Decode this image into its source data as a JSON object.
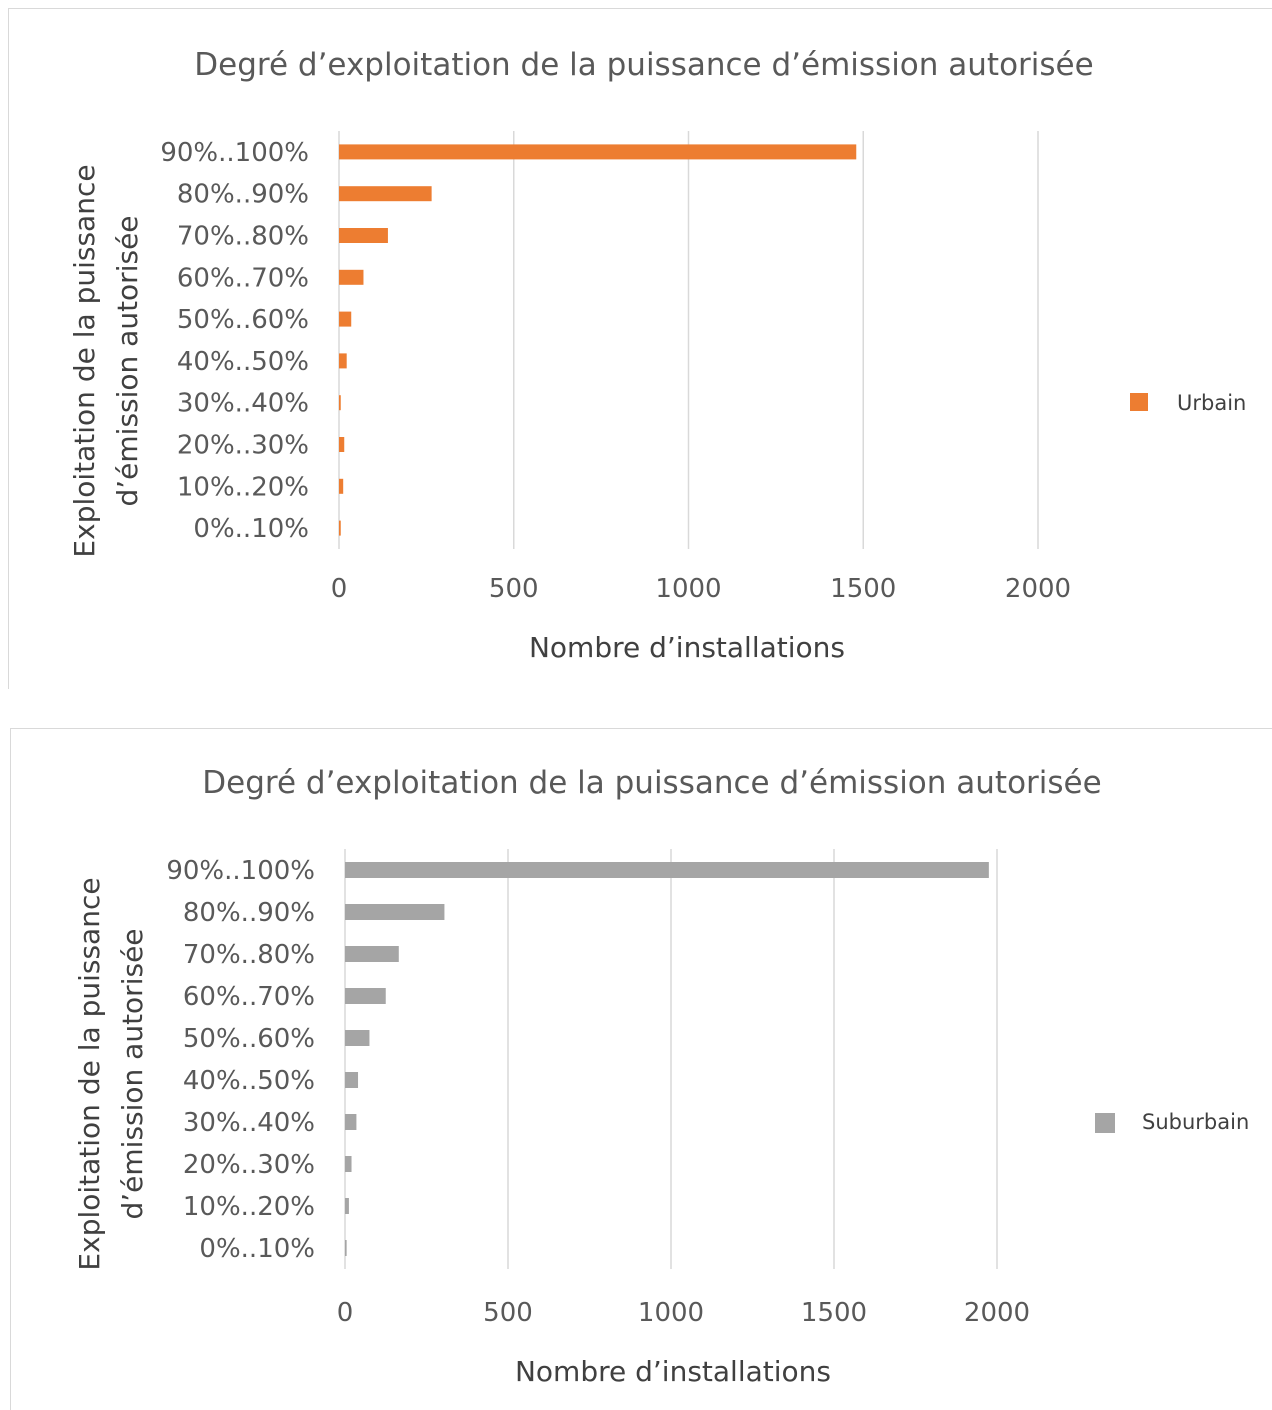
{
  "chart_data": [
    {
      "type": "bar",
      "orientation": "horizontal",
      "title": "Degré d’exploitation de la puissance d’émission autorisée",
      "xlabel": "Nombre d’installations",
      "ylabel": "Exploitation de la puissance d’émission autorisée",
      "ylabel_lines": [
        "Exploitation de la puissance",
        "d’émission autorisée"
      ],
      "categories": [
        "0%..10%",
        "10%..20%",
        "20%..30%",
        "30%..40%",
        "40%..50%",
        "50%..60%",
        "60%..70%",
        "70%..80%",
        "80%..90%",
        "90%..100%"
      ],
      "series": [
        {
          "name": "Urbain",
          "color": "#ED7D31",
          "values": [
            5,
            12,
            15,
            5,
            22,
            35,
            70,
            140,
            265,
            1480
          ]
        }
      ],
      "xlim": [
        0,
        2000
      ],
      "xticks": [
        "0",
        "500",
        "1000",
        "1500",
        "2000"
      ],
      "grid": true,
      "legend": "right"
    },
    {
      "type": "bar",
      "orientation": "horizontal",
      "title": "Degré d’exploitation de la puissance d’émission autorisée",
      "xlabel": "Nombre d’installations",
      "ylabel": "Exploitation de la puissance d’émission autorisée",
      "ylabel_lines": [
        "Exploitation de la puissance",
        "d’émission autorisée"
      ],
      "categories": [
        "0%..10%",
        "10%..20%",
        "20%..30%",
        "30%..40%",
        "40%..50%",
        "50%..60%",
        "60%..70%",
        "70%..80%",
        "80%..90%",
        "90%..100%"
      ],
      "series": [
        {
          "name": "Suburbain",
          "color": "#A5A5A5",
          "values": [
            5,
            12,
            20,
            35,
            40,
            75,
            125,
            165,
            305,
            1975
          ]
        }
      ],
      "xlim": [
        0,
        2000
      ],
      "xticks": [
        "0",
        "500",
        "1000",
        "1500",
        "2000"
      ],
      "grid": true,
      "legend": "right"
    }
  ]
}
